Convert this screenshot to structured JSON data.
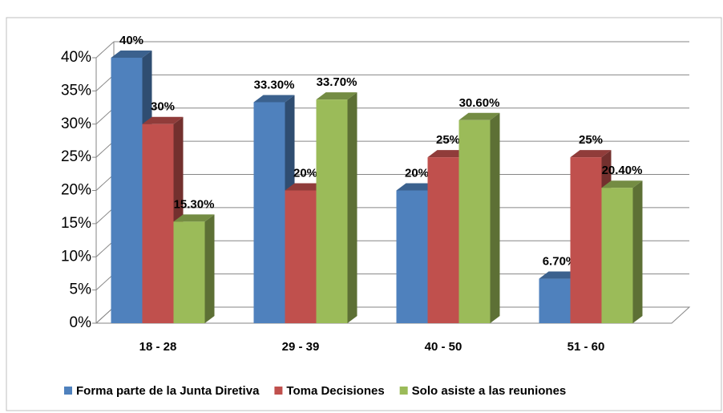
{
  "chart_data": {
    "type": "bar3d",
    "categories": [
      "18 - 28",
      "29 - 39",
      "40 - 50",
      "51 - 60"
    ],
    "series": [
      {
        "name": "Forma parte de la Junta Diretiva",
        "color": "#4f81bd",
        "values": [
          40,
          33.3,
          20,
          6.7
        ],
        "value_labels": [
          "40%",
          "33.30%",
          "20%",
          "6.70%"
        ]
      },
      {
        "name": "Toma Decisiones",
        "color": "#c0504d",
        "values": [
          30,
          20,
          25,
          25
        ],
        "value_labels": [
          "30%",
          "20%",
          "25%",
          "25%"
        ]
      },
      {
        "name": "Solo asiste a las reuniones",
        "color": "#9bbb59",
        "values": [
          15.3,
          33.7,
          30.6,
          20.4
        ],
        "value_labels": [
          "15.30%",
          "33.70%",
          "30.60%",
          "20.40%"
        ]
      }
    ],
    "ylim": [
      0,
      40
    ],
    "yticks": [
      {
        "value": 0,
        "label": "0%"
      },
      {
        "value": 5,
        "label": "5%"
      },
      {
        "value": 10,
        "label": "10%"
      },
      {
        "value": 15,
        "label": "15%"
      },
      {
        "value": 20,
        "label": "20%"
      },
      {
        "value": 25,
        "label": "25%"
      },
      {
        "value": 30,
        "label": "30%"
      },
      {
        "value": 35,
        "label": "35%"
      },
      {
        "value": 40,
        "label": "40%"
      }
    ],
    "grid": true,
    "legend": "bottom"
  }
}
